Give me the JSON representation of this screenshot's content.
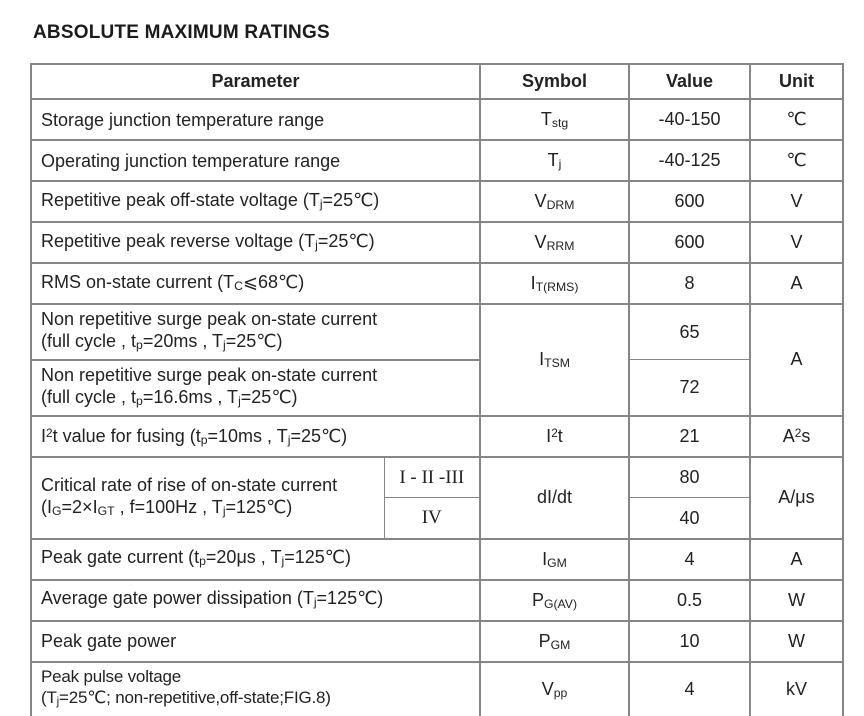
{
  "page": {
    "title": "ABSOLUTE MAXIMUM RATINGS"
  },
  "colors": {
    "background": "#ffffff",
    "text": "#222222",
    "table_border": "#868686"
  },
  "table": {
    "headers": {
      "parameter": "Parameter",
      "symbol": "Symbol",
      "value": "Value",
      "unit": "Unit"
    },
    "rows": [
      {
        "param": "Storage junction temperature range",
        "symbol": "T_{stg}",
        "value": "-40-150",
        "unit": "℃"
      },
      {
        "param": "Operating junction temperature range",
        "symbol": "T_{j}",
        "value": "-40-125",
        "unit": "℃"
      },
      {
        "param": "Repetitive peak off-state voltage (T_{j}=25℃)",
        "symbol": "V_{DRM}",
        "value": "600",
        "unit": "V"
      },
      {
        "param": "Repetitive peak reverse voltage (T_{j}=25℃)",
        "symbol": "V_{RRM}",
        "value": "600",
        "unit": "V"
      },
      {
        "param": "RMS on-state current (T_{C}⩽68℃)",
        "symbol": "I_{T(RMS)}",
        "value": "8",
        "unit": "A"
      },
      {
        "param": "Non repetitive surge peak on-state current\n(full cycle , t_{p}=20ms , T_{j}=25℃)",
        "symbol": "I_{TSM}",
        "value": "65",
        "unit": "A"
      },
      {
        "param": "Non repetitive surge peak on-state current\n(full cycle , t_{p}=16.6ms , T_{j}=25℃)",
        "value": "72"
      },
      {
        "param": "I^{2}t value for fusing (t_{p}=10ms , T_{j}=25℃)",
        "symbol": "I^{2}t",
        "value": "21",
        "unit": "A^{2}s"
      },
      {
        "param": "Critical rate of rise of on-state current\n(I_{G}=2×I_{GT} , f=100Hz , T_{j}=125℃)",
        "quadrants": [
          "I - II -III",
          "IV"
        ],
        "symbol": "dI/dt",
        "values": [
          "80",
          "40"
        ],
        "unit": "A/μs"
      },
      {
        "param": "Peak gate current (t_{p}=20μs , T_{j}=125℃)",
        "symbol": "I_{GM}",
        "value": "4",
        "unit": "A"
      },
      {
        "param": "Average gate power dissipation (T_{j}=125℃)",
        "symbol": "P_{G(AV)}",
        "value": "0.5",
        "unit": "W"
      },
      {
        "param": "Peak gate power",
        "symbol": "P_{GM}",
        "value": "10",
        "unit": "W"
      },
      {
        "param": "Peak pulse voltage\n(T_{j}=25℃; non-repetitive,off-state;FIG.8)",
        "symbol": "V_{pp}",
        "value": "4",
        "unit": "kV"
      }
    ]
  }
}
